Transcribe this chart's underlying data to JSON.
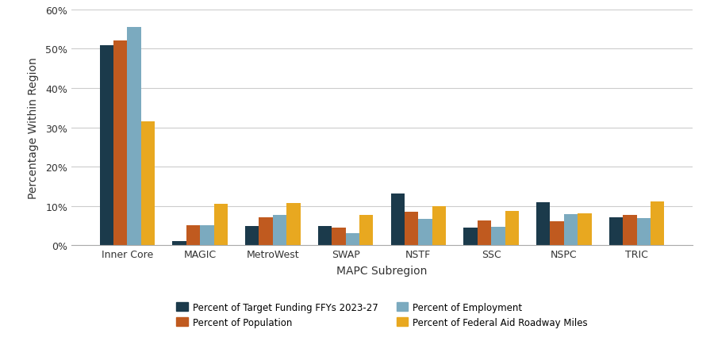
{
  "categories": [
    "Inner Core",
    "MAGIC",
    "MetroWest",
    "SWAP",
    "NSTF",
    "SSC",
    "NSPC",
    "TRIC"
  ],
  "series": {
    "Percent of Target Funding FFYs 2023-27": [
      51.0,
      1.0,
      5.0,
      5.0,
      13.2,
      4.5,
      11.0,
      7.2
    ],
    "Percent of Population": [
      52.2,
      5.2,
      7.2,
      4.5,
      8.5,
      6.3,
      6.2,
      7.8
    ],
    "Percent of Employment": [
      55.5,
      5.2,
      7.7,
      3.0,
      6.7,
      4.7,
      8.0,
      7.0
    ],
    "Percent of Federal Aid Roadway Miles": [
      31.5,
      10.5,
      10.7,
      7.7,
      9.9,
      8.7,
      8.2,
      11.2
    ]
  },
  "colors": {
    "Percent of Target Funding FFYs 2023-27": "#1B3A4B",
    "Percent of Population": "#C05A1F",
    "Percent of Employment": "#7BAABF",
    "Percent of Federal Aid Roadway Miles": "#E8A820"
  },
  "ylabel": "Percentage Within Region",
  "xlabel": "MAPC Subregion",
  "ylim": [
    0,
    60
  ],
  "yticks": [
    0,
    10,
    20,
    30,
    40,
    50,
    60
  ],
  "ytick_labels": [
    "0%",
    "10%",
    "20%",
    "30%",
    "40%",
    "50%",
    "60%"
  ],
  "background_color": "#FFFFFF",
  "grid_color": "#CCCCCC",
  "bar_width": 0.19,
  "legend_ncol": 2
}
